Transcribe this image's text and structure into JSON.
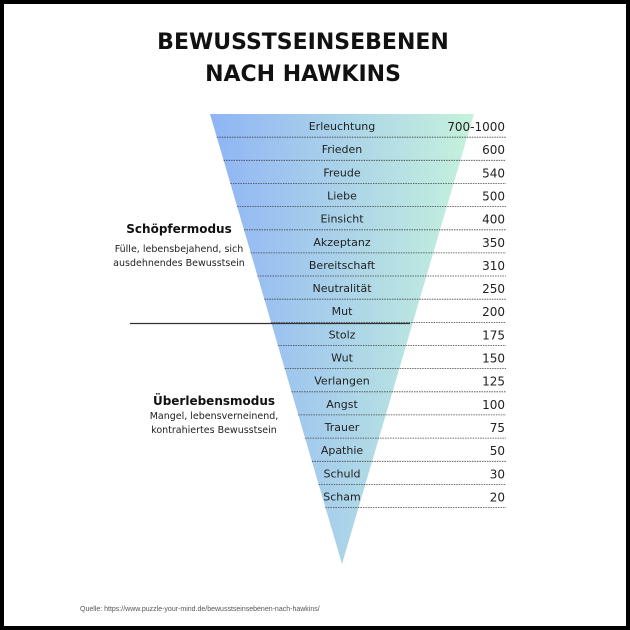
{
  "title_line1": "BEWUSSTSEINSEBENEN",
  "title_line2": "NACH HAWKINS",
  "levels": [
    {
      "name": "Erleuchtung",
      "value": "700-1000"
    },
    {
      "name": "Frieden",
      "value": "600"
    },
    {
      "name": "Freude",
      "value": "540"
    },
    {
      "name": "Liebe",
      "value": "500"
    },
    {
      "name": "Einsicht",
      "value": "400"
    },
    {
      "name": "Akzeptanz",
      "value": "350"
    },
    {
      "name": "Bereitschaft",
      "value": "310"
    },
    {
      "name": "Neutralität",
      "value": "250"
    },
    {
      "name": "Mut",
      "value": "200"
    },
    {
      "name": "Stolz",
      "value": "175"
    },
    {
      "name": "Wut",
      "value": "150"
    },
    {
      "name": "Verlangen",
      "value": "125"
    },
    {
      "name": "Angst",
      "value": "100"
    },
    {
      "name": "Trauer",
      "value": "75"
    },
    {
      "name": "Apathie",
      "value": "50"
    },
    {
      "name": "Schuld",
      "value": "30"
    },
    {
      "name": "Scham",
      "value": "20"
    }
  ],
  "creator_mode": {
    "title": "Schöpfermodus",
    "desc_line1": "Fülle, lebensbejahend, sich",
    "desc_line2": "ausdehnendes Bewusstsein"
  },
  "survival_mode": {
    "title": "Überlebensmodus",
    "desc_line1": "Mangel, lebensverneinend,",
    "desc_line2": "kontrahiertes Bewusstsein"
  },
  "source": "Quelle: https://www.puzzle-your-mind.de/bewusstseinsebenen-nach-hawkins/",
  "colors": {
    "gradient_left": "#8fb4f6",
    "gradient_right": "#c6f2dc",
    "divider": "#333333",
    "row_line": "#444444"
  }
}
